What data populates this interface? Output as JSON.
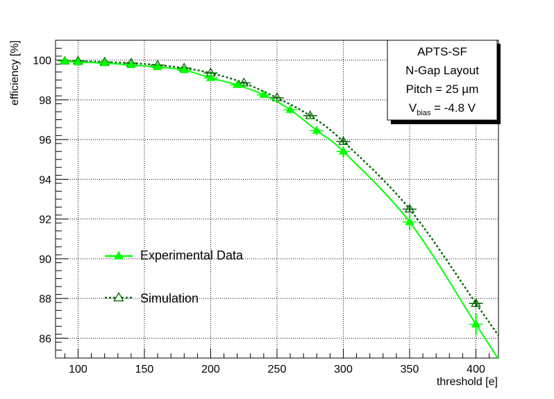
{
  "chart_data": {
    "type": "line",
    "title": "",
    "xlabel": "threshold [e]",
    "ylabel": "efficiency [%]",
    "xlim": [
      83,
      417
    ],
    "ylim": [
      85,
      101
    ],
    "grid": true,
    "x_ticks": [
      100,
      150,
      200,
      250,
      300,
      350,
      400
    ],
    "y_ticks": [
      86,
      88,
      90,
      92,
      94,
      96,
      98,
      100
    ],
    "series": [
      {
        "name": "Experimental Data",
        "marker": "filled-triangle",
        "line_style": "solid",
        "color": "#00ff00",
        "x": [
          90,
          100,
          120,
          140,
          160,
          180,
          200,
          220,
          240,
          260,
          280,
          300,
          350,
          400
        ],
        "y": [
          99.95,
          99.9,
          99.85,
          99.75,
          99.65,
          99.5,
          99.1,
          98.75,
          98.25,
          97.5,
          96.45,
          95.4,
          91.85,
          86.7
        ],
        "yerr": [
          0.05,
          0.05,
          0.06,
          0.07,
          0.08,
          0.1,
          0.12,
          0.14,
          0.16,
          0.18,
          0.22,
          0.27,
          0.4,
          0.55
        ]
      },
      {
        "name": "Simulation",
        "marker": "open-triangle",
        "line_style": "dotted",
        "color": "#006400",
        "x": [
          90,
          100,
          120,
          140,
          160,
          180,
          200,
          225,
          250,
          275,
          300,
          350,
          400
        ],
        "y": [
          99.95,
          99.95,
          99.9,
          99.85,
          99.75,
          99.6,
          99.35,
          98.85,
          98.1,
          97.2,
          95.9,
          92.5,
          87.75
        ],
        "yerr": [
          0.02,
          0.02,
          0.03,
          0.03,
          0.04,
          0.05,
          0.06,
          0.07,
          0.08,
          0.1,
          0.12,
          0.15,
          0.2
        ]
      }
    ]
  },
  "info_box": {
    "line1": "APTS-SF",
    "line2": "N-Gap Layout",
    "line3": "Pitch = 25 µm",
    "vbias_symbol": "V",
    "vbias_sub": "bias",
    "vbias_value": " = -4.8 V"
  },
  "colors": {
    "experimental": "#00ff00",
    "simulation": "#006400",
    "grid": "#000000"
  }
}
